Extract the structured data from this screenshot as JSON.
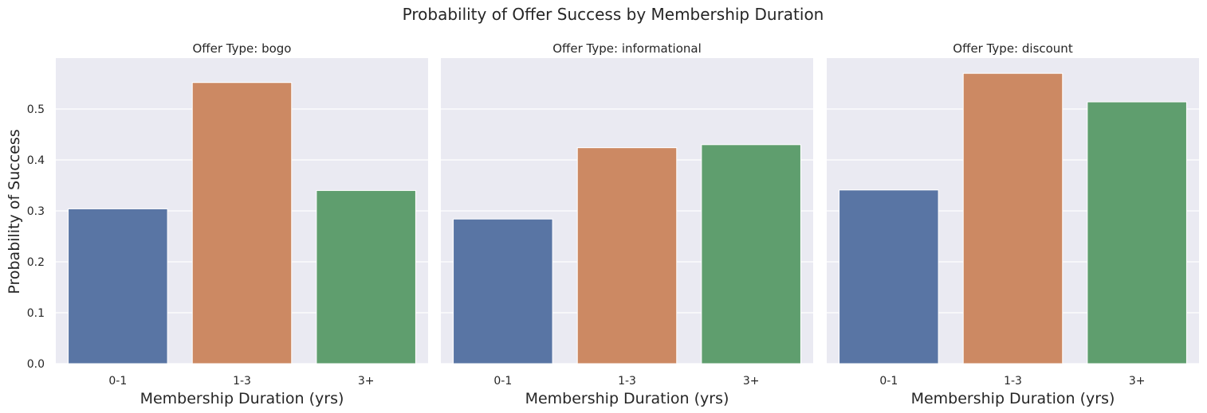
{
  "suptitle": "Probability of Offer Success by Membership Duration",
  "chart_data": {
    "type": "bar",
    "title": "Probability of Offer Success by Membership Duration",
    "xlabel": "Membership Duration (yrs)",
    "ylabel": "Probability of Success",
    "ylim": [
      0,
      0.6
    ],
    "yticks": [
      0.0,
      0.1,
      0.2,
      0.3,
      0.4,
      0.5
    ],
    "ytick_labels": [
      "0.0",
      "0.1",
      "0.2",
      "0.3",
      "0.4",
      "0.5"
    ],
    "grid": true,
    "categories": [
      "0-1",
      "1-3",
      "3+"
    ],
    "colors": [
      "#5975a4",
      "#cc8963",
      "#5f9e6e"
    ],
    "background": "#eaeaf2",
    "facets": [
      {
        "title": "Offer Type: bogo",
        "values": [
          0.304,
          0.552,
          0.34
        ]
      },
      {
        "title": "Offer Type: informational",
        "values": [
          0.284,
          0.424,
          0.43
        ]
      },
      {
        "title": "Offer Type: discount",
        "values": [
          0.341,
          0.57,
          0.514
        ]
      }
    ]
  }
}
